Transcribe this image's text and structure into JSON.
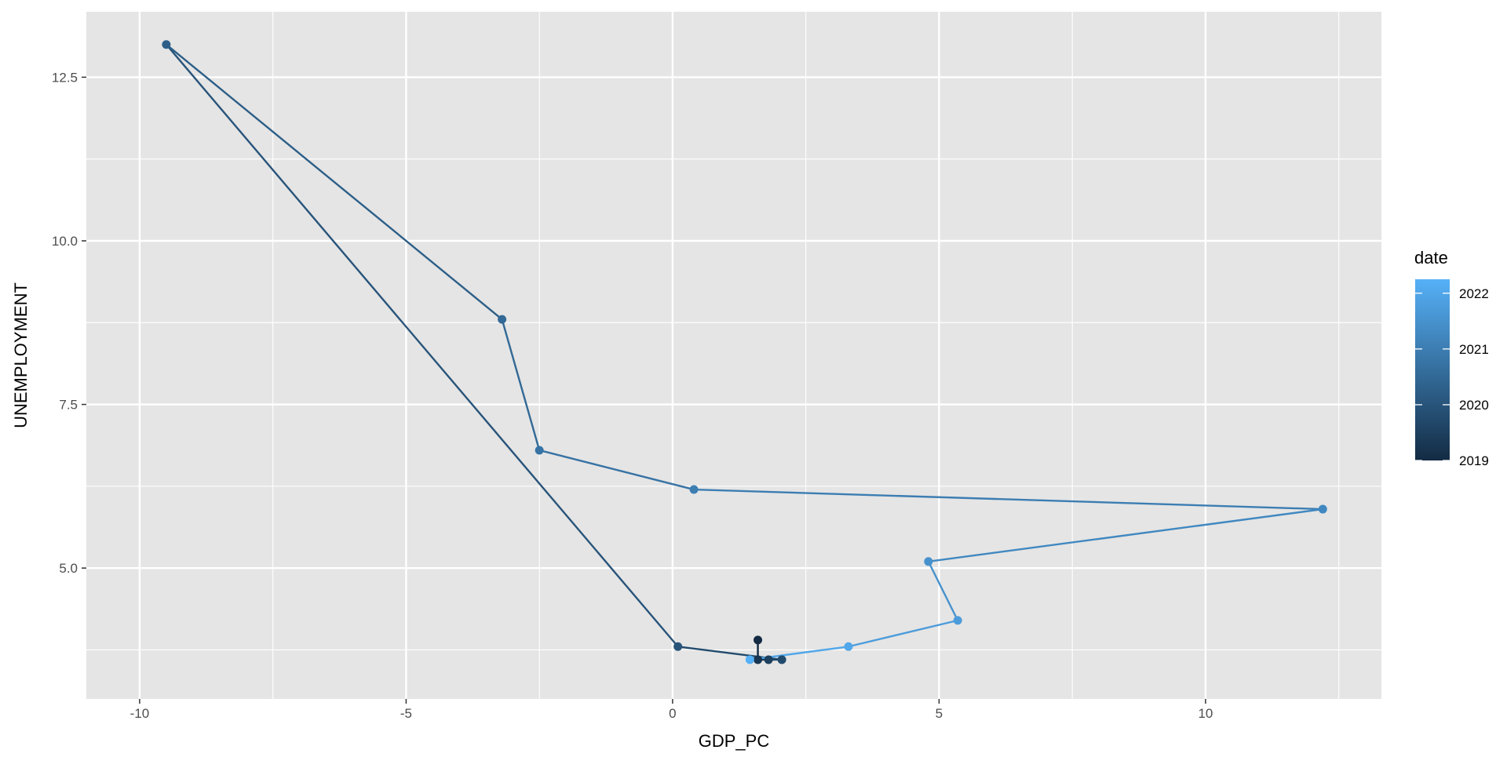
{
  "chart_data": {
    "type": "scatter",
    "connected": true,
    "xlabel": "GDP_PC",
    "ylabel": "UNEMPLOYMENT",
    "xlim": [
      -11,
      13.3
    ],
    "ylim": [
      3.0,
      13.5
    ],
    "x_ticks": [
      -10,
      -5,
      0,
      5,
      10
    ],
    "x_tick_labels": [
      "-10",
      "-5",
      "0",
      "5",
      "10"
    ],
    "y_ticks": [
      5.0,
      7.5,
      10.0,
      12.5
    ],
    "y_tick_labels": [
      "5.0",
      "7.5",
      "10.0",
      "12.5"
    ],
    "grid": true,
    "panel_background": "#e5e5e5",
    "grid_color": "#ffffff",
    "legend": {
      "title": "date",
      "placement": "right",
      "type": "colorbar",
      "range": [
        2019.0,
        2022.25
      ],
      "ticks": [
        2019,
        2020,
        2021,
        2022
      ],
      "tick_labels": [
        "2019",
        "2020",
        "2021",
        "2022"
      ],
      "color_low": "#132b43",
      "color_high": "#56b1f7"
    },
    "points": [
      {
        "date": 2019.0,
        "x": 1.6,
        "y": 3.9
      },
      {
        "date": 2019.25,
        "x": 1.6,
        "y": 3.6
      },
      {
        "date": 2019.5,
        "x": 1.8,
        "y": 3.6
      },
      {
        "date": 2019.75,
        "x": 2.05,
        "y": 3.6
      },
      {
        "date": 2020.0,
        "x": 0.1,
        "y": 3.8
      },
      {
        "date": 2020.25,
        "x": -9.5,
        "y": 13.0
      },
      {
        "date": 2020.5,
        "x": -3.2,
        "y": 8.8
      },
      {
        "date": 2020.75,
        "x": -2.5,
        "y": 6.8
      },
      {
        "date": 2021.0,
        "x": 0.4,
        "y": 6.2
      },
      {
        "date": 2021.25,
        "x": 12.2,
        "y": 5.9
      },
      {
        "date": 2021.5,
        "x": 4.8,
        "y": 5.1
      },
      {
        "date": 2021.75,
        "x": 5.35,
        "y": 4.2
      },
      {
        "date": 2022.0,
        "x": 3.3,
        "y": 3.8
      },
      {
        "date": 2022.25,
        "x": 1.45,
        "y": 3.6
      }
    ]
  }
}
